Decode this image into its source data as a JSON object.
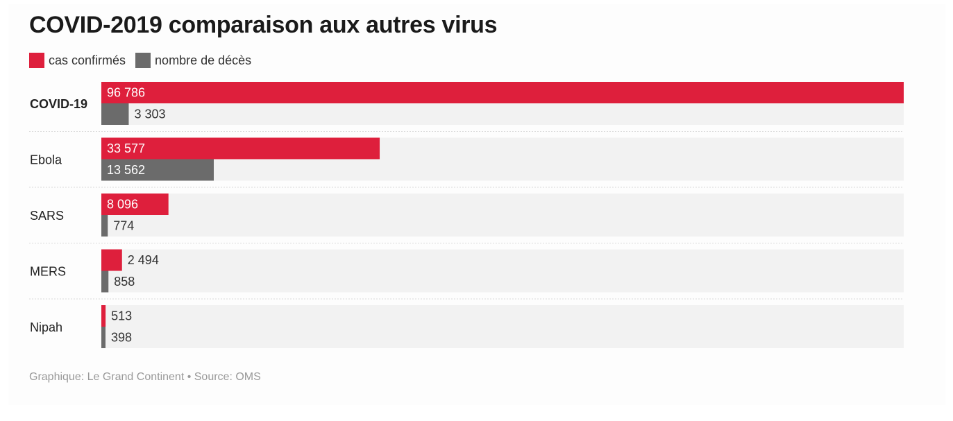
{
  "chart_data": {
    "type": "bar",
    "title": "COVID-2019 comparaison aux autres virus",
    "categories": [
      "COVID-19",
      "Ebola",
      "SARS",
      "MERS",
      "Nipah"
    ],
    "series": [
      {
        "name": "cas confirmés",
        "color": "#de1f3c",
        "values": [
          96786,
          33577,
          8096,
          2494,
          513
        ],
        "labels": [
          "96 786",
          "33 577",
          "8 096",
          "2 494",
          "513"
        ]
      },
      {
        "name": "nombre de décès",
        "color": "#6b6b6b",
        "values": [
          3303,
          13562,
          774,
          858,
          398
        ],
        "labels": [
          "3 303",
          "13 562",
          "774",
          "858",
          "398"
        ]
      }
    ],
    "highlight_category": "COVID-19",
    "orientation": "horizontal",
    "xlim": [
      0,
      96786
    ],
    "legend_position": "top-left",
    "grid": false
  },
  "footer": "Graphique: Le Grand Continent • Source: OMS",
  "colors": {
    "track": "#f2f2f2",
    "separator": "#d9d9d9",
    "footer_text": "#999999"
  }
}
